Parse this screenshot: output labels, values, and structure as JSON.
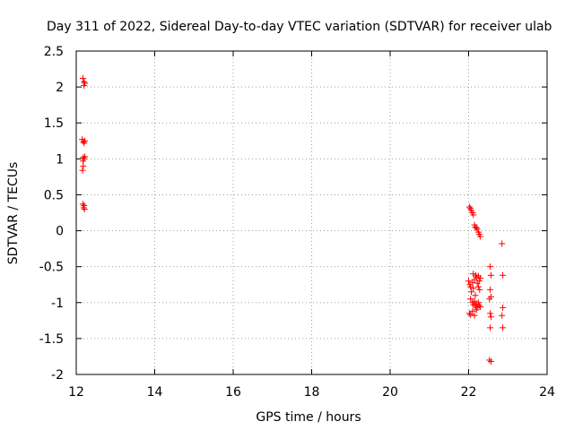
{
  "chart_data": {
    "type": "scatter",
    "title": "Day 311 of 2022, Sidereal Day-to-day VTEC variation (SDTVAR) for receiver ulab",
    "xlabel": "GPS time / hours",
    "ylabel": "SDTVAR / TECUs",
    "xlim": [
      12,
      24
    ],
    "ylim": [
      -2,
      2.5
    ],
    "xticks": [
      "12",
      "14",
      "16",
      "18",
      "20",
      "22",
      "24"
    ],
    "yticks": [
      "2.5",
      "2",
      "1.5",
      "1",
      "0.5",
      "0",
      "-0.5",
      "-1",
      "-1.5",
      "-2"
    ],
    "grid": true,
    "marker": "+",
    "series": [
      {
        "name": "SDTVAR",
        "color": "#ff0000",
        "points": [
          [
            12.17,
            2.12
          ],
          [
            12.2,
            2.07
          ],
          [
            12.22,
            2.05
          ],
          [
            12.2,
            2.02
          ],
          [
            12.15,
            1.27
          ],
          [
            12.18,
            1.24
          ],
          [
            12.2,
            1.22
          ],
          [
            12.22,
            1.25
          ],
          [
            12.18,
            1.02
          ],
          [
            12.2,
            1.0
          ],
          [
            12.22,
            1.03
          ],
          [
            12.17,
            0.97
          ],
          [
            12.18,
            0.9
          ],
          [
            12.16,
            0.84
          ],
          [
            12.17,
            0.37
          ],
          [
            12.2,
            0.35
          ],
          [
            12.19,
            0.32
          ],
          [
            12.21,
            0.3
          ],
          [
            22.02,
            0.33
          ],
          [
            22.05,
            0.31
          ],
          [
            22.07,
            0.28
          ],
          [
            22.1,
            0.25
          ],
          [
            22.12,
            0.22
          ],
          [
            22.15,
            0.08
          ],
          [
            22.17,
            0.05
          ],
          [
            22.2,
            0.04
          ],
          [
            22.22,
            0.02
          ],
          [
            22.25,
            -0.02
          ],
          [
            22.27,
            -0.05
          ],
          [
            22.3,
            -0.08
          ],
          [
            22.0,
            -0.7
          ],
          [
            22.03,
            -0.75
          ],
          [
            22.05,
            -0.78
          ],
          [
            22.07,
            -0.85
          ],
          [
            22.1,
            -0.72
          ],
          [
            22.12,
            -0.8
          ],
          [
            22.15,
            -0.68
          ],
          [
            22.17,
            -0.9
          ],
          [
            22.2,
            -0.65
          ],
          [
            22.22,
            -0.73
          ],
          [
            22.25,
            -0.78
          ],
          [
            22.27,
            -0.7
          ],
          [
            22.28,
            -0.82
          ],
          [
            22.3,
            -0.66
          ],
          [
            22.05,
            -0.95
          ],
          [
            22.1,
            -1.0
          ],
          [
            22.12,
            -1.03
          ],
          [
            22.15,
            -0.98
          ],
          [
            22.17,
            -1.05
          ],
          [
            22.2,
            -1.02
          ],
          [
            22.22,
            -1.07
          ],
          [
            22.25,
            -1.0
          ],
          [
            22.27,
            -1.04
          ],
          [
            22.3,
            -1.06
          ],
          [
            22.02,
            -1.15
          ],
          [
            22.05,
            -1.17
          ],
          [
            22.1,
            -1.12
          ],
          [
            22.15,
            -1.18
          ],
          [
            22.2,
            -1.1
          ],
          [
            22.12,
            -0.6
          ],
          [
            22.18,
            -0.62
          ],
          [
            22.25,
            -0.63
          ],
          [
            22.55,
            -0.5
          ],
          [
            22.57,
            -0.62
          ],
          [
            22.55,
            -0.82
          ],
          [
            22.57,
            -0.92
          ],
          [
            22.53,
            -0.95
          ],
          [
            22.55,
            -1.15
          ],
          [
            22.57,
            -1.2
          ],
          [
            22.55,
            -1.35
          ],
          [
            22.53,
            -1.8
          ],
          [
            22.57,
            -1.82
          ],
          [
            22.85,
            -0.18
          ],
          [
            22.87,
            -0.62
          ],
          [
            22.87,
            -1.07
          ],
          [
            22.85,
            -1.18
          ],
          [
            22.87,
            -1.35
          ]
        ]
      }
    ]
  }
}
